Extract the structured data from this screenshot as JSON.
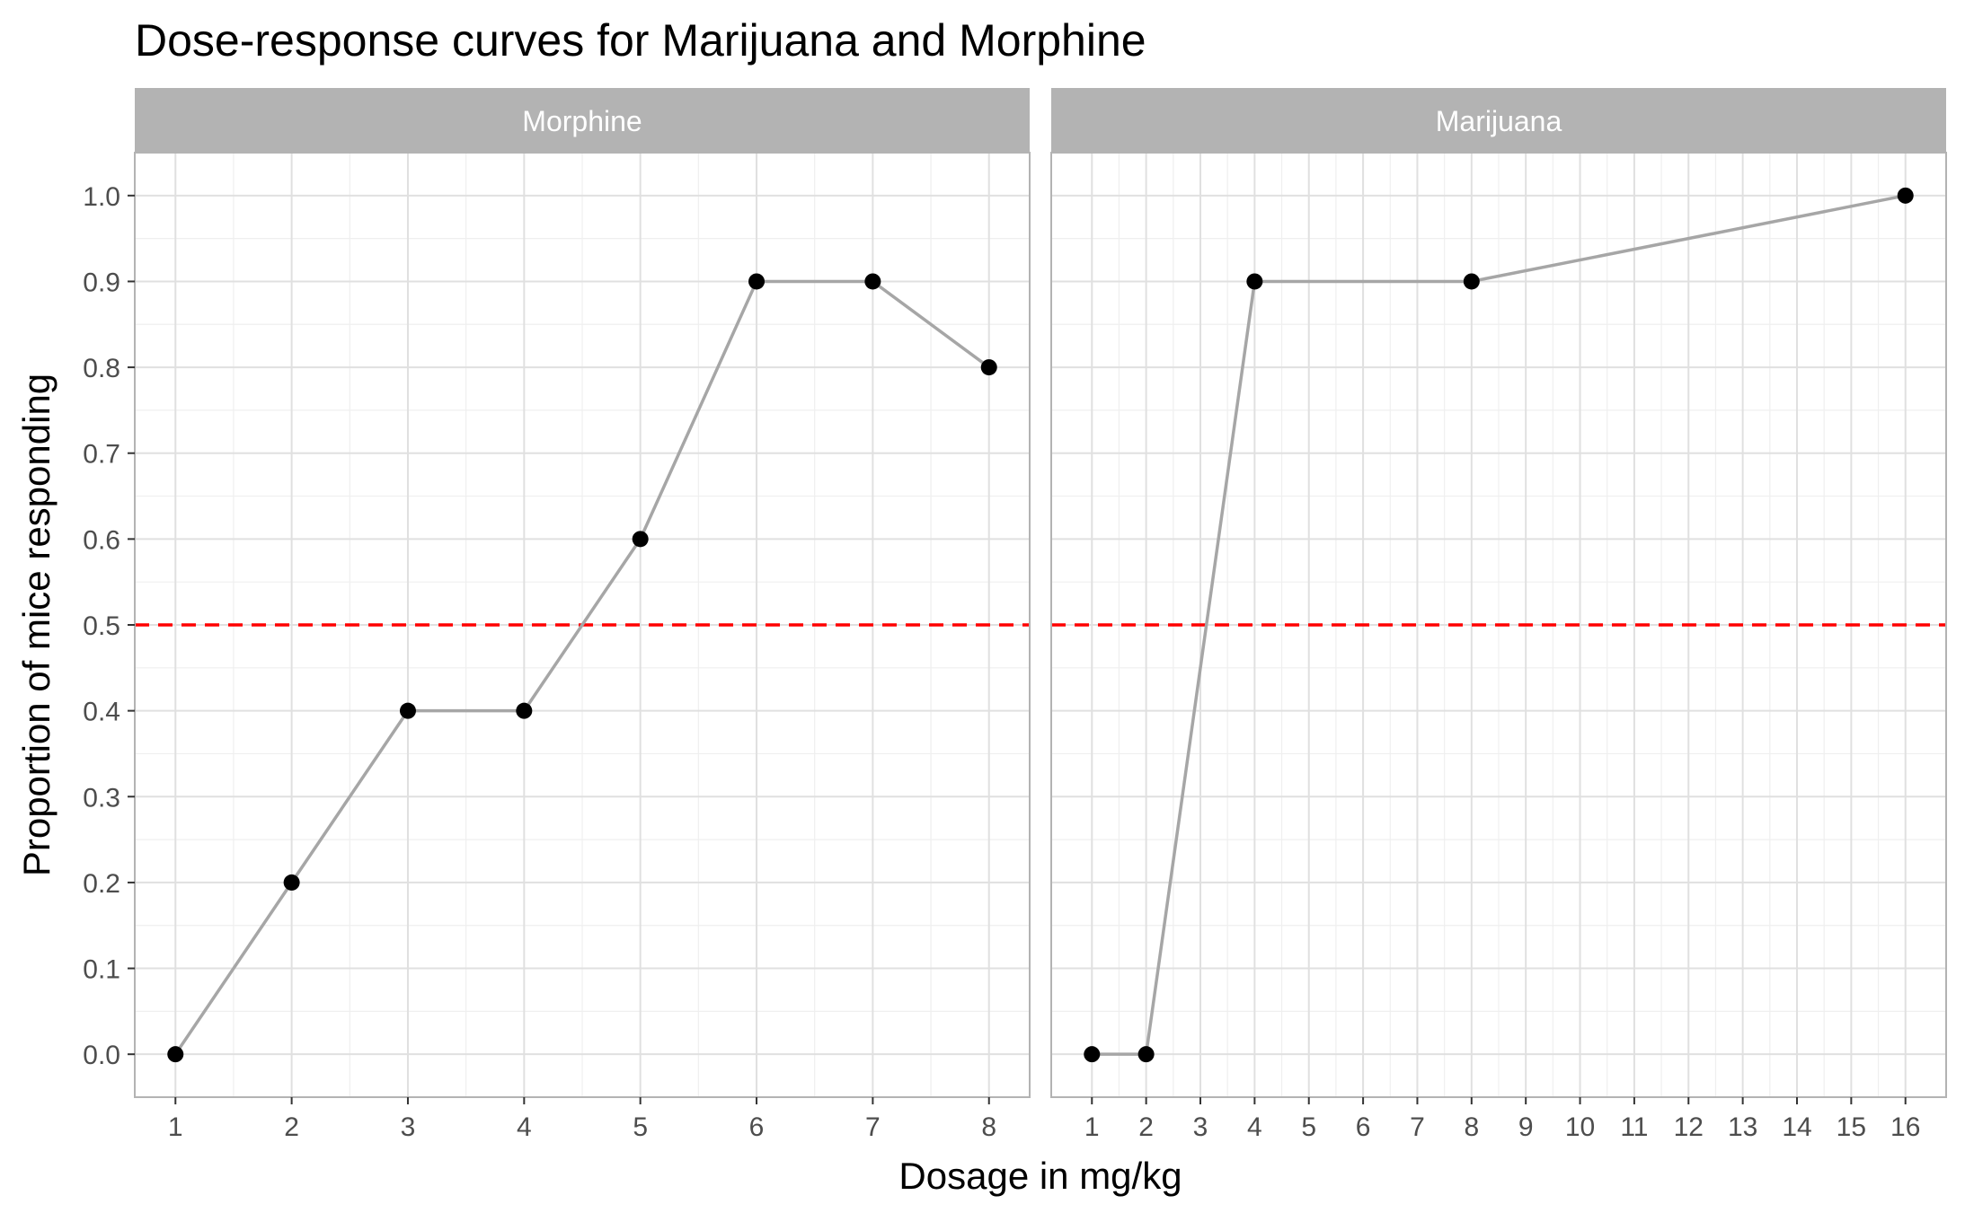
{
  "chart_data": {
    "type": "line",
    "title": "Dose-response curves for Marijuana and Morphine",
    "xlabel": "Dosage in mg/kg",
    "ylabel": "Proportion of mice responding",
    "ylim": [
      -0.05,
      1.05
    ],
    "y_ticks": [
      "0.0",
      "0.1",
      "0.2",
      "0.3",
      "0.4",
      "0.5",
      "0.6",
      "0.7",
      "0.8",
      "0.9",
      "1.0"
    ],
    "y_tick_values": [
      0,
      0.1,
      0.2,
      0.3,
      0.4,
      0.5,
      0.6,
      0.7,
      0.8,
      0.9,
      1.0
    ],
    "reference_line": {
      "y": 0.5,
      "color": "#ff0000",
      "style": "dashed"
    },
    "grid": true,
    "line_color": "#a6a6a6",
    "point_color": "#000000",
    "strip_color": "#b3b3b3",
    "panels": [
      {
        "name": "Morphine",
        "xlim": [
          0.65,
          8.35
        ],
        "x_ticks": [
          "1",
          "2",
          "3",
          "4",
          "5",
          "6",
          "7",
          "8"
        ],
        "x_tick_values": [
          1,
          2,
          3,
          4,
          5,
          6,
          7,
          8
        ],
        "x": [
          1,
          2,
          3,
          4,
          5,
          6,
          7,
          8
        ],
        "y": [
          0.0,
          0.2,
          0.4,
          0.4,
          0.6,
          0.9,
          0.9,
          0.8
        ]
      },
      {
        "name": "Marijuana",
        "xlim": [
          0.25,
          16.75
        ],
        "x_ticks": [
          "1",
          "2",
          "3",
          "4",
          "5",
          "6",
          "7",
          "8",
          "9",
          "10",
          "11",
          "12",
          "13",
          "14",
          "15",
          "16"
        ],
        "x_tick_values": [
          1,
          2,
          3,
          4,
          5,
          6,
          7,
          8,
          9,
          10,
          11,
          12,
          13,
          14,
          15,
          16
        ],
        "x": [
          1,
          2,
          4,
          8,
          16
        ],
        "y": [
          0.0,
          0.0,
          0.9,
          0.9,
          1.0
        ]
      }
    ]
  }
}
